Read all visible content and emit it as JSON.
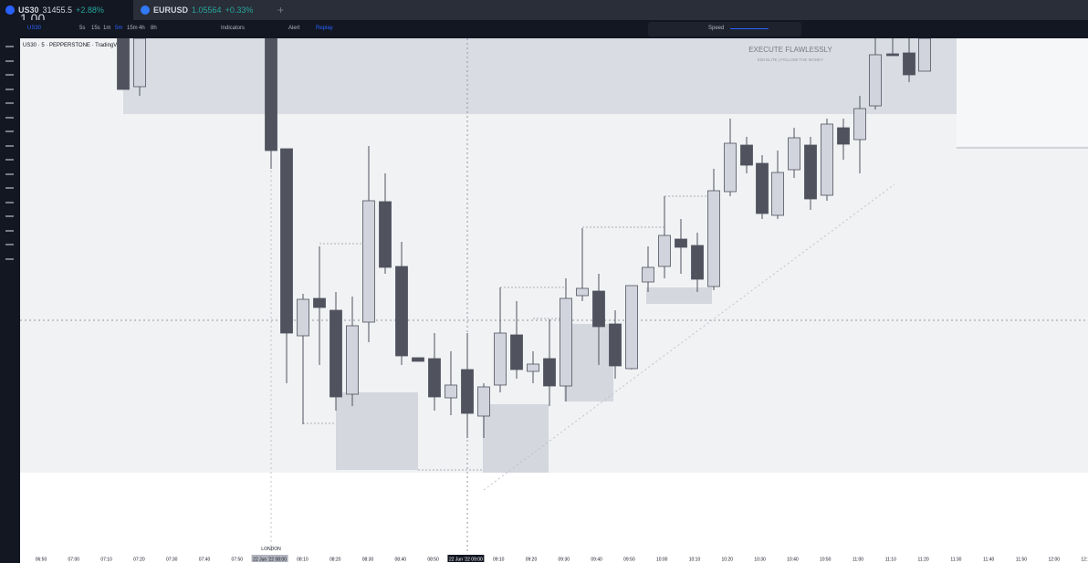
{
  "tabs": [
    {
      "symbol": "US30",
      "price": "31455.5",
      "change": "+2.88%"
    },
    {
      "symbol": "EURUSD",
      "price": "1.05564",
      "change": "+0.33%"
    }
  ],
  "overlay_value": "1.00",
  "toolbar": {
    "symbol": "US30",
    "intervals": [
      "5s",
      "15s",
      "1m",
      "5m",
      "15m",
      "4h",
      "8h"
    ],
    "indicators": "Indicators",
    "alert": "Alert",
    "replay": "Replay",
    "speed": "Speed"
  },
  "chart_legend": "US30 · 5 · PEPPERSTONE · TradingView",
  "watermark": {
    "title": "EXECUTE FLAWLESSLY",
    "subtitle": "EMI ELITE | FOLLOW THE MONEY"
  },
  "session_label": "LONDON",
  "time_axis": [
    "06:50",
    "07:00",
    "07:10",
    "07:20",
    "07:30",
    "07:40",
    "07:50",
    "22 Jun '22 08:00",
    "08:10",
    "08:20",
    "08:30",
    "08:40",
    "08:50",
    "22 Jun '22 09:00",
    "09:10",
    "09:20",
    "09:30",
    "09:40",
    "09:50",
    "10:00",
    "10:10",
    "10:20",
    "10:30",
    "10:40",
    "10:50",
    "11:00",
    "11:10",
    "11:20",
    "11:30",
    "11:40",
    "11:50",
    "12:00",
    "12:10"
  ]
}
